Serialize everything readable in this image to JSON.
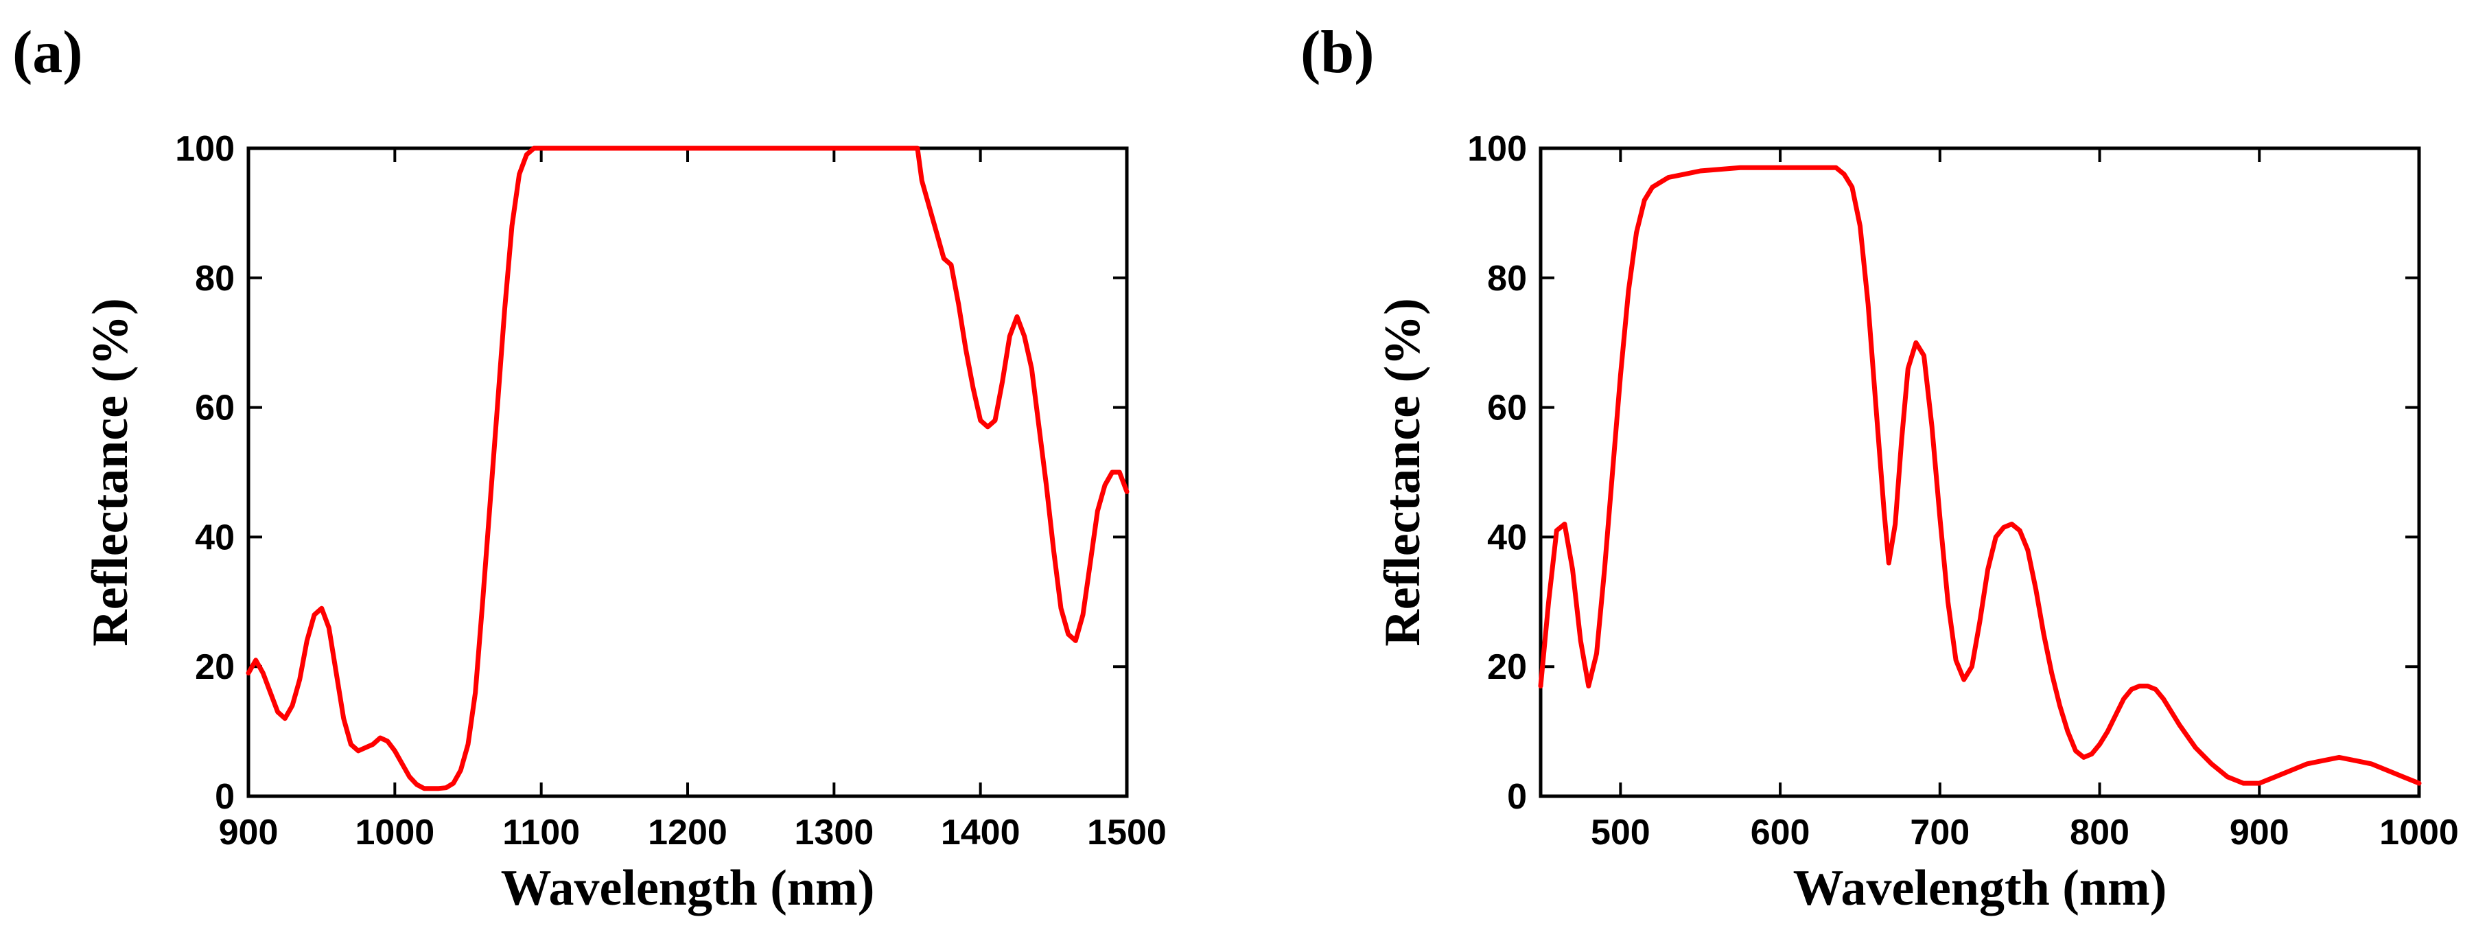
{
  "chart_data": [
    {
      "type": "line",
      "panel_label": "(a)",
      "xlabel": "Wavelength (nm)",
      "ylabel": "Reflectance (%)",
      "xlim": [
        900,
        1500
      ],
      "ylim": [
        0,
        100
      ],
      "xticks": [
        900,
        1000,
        1100,
        1200,
        1300,
        1400,
        1500
      ],
      "yticks": [
        0,
        20,
        40,
        60,
        80,
        100
      ],
      "grid": false,
      "series": [
        {
          "name": "reflectance",
          "color": "#ff0000",
          "x": [
            900,
            905,
            910,
            915,
            920,
            925,
            930,
            935,
            940,
            945,
            950,
            955,
            960,
            965,
            970,
            975,
            980,
            985,
            990,
            995,
            1000,
            1005,
            1010,
            1015,
            1020,
            1025,
            1030,
            1035,
            1040,
            1045,
            1050,
            1055,
            1060,
            1065,
            1070,
            1075,
            1080,
            1085,
            1090,
            1095,
            1100,
            1150,
            1200,
            1250,
            1300,
            1357,
            1360,
            1365,
            1370,
            1375,
            1380,
            1385,
            1390,
            1395,
            1400,
            1405,
            1410,
            1415,
            1420,
            1425,
            1430,
            1435,
            1440,
            1445,
            1450,
            1455,
            1460,
            1465,
            1470,
            1475,
            1480,
            1485,
            1490,
            1495,
            1500
          ],
          "y": [
            19,
            21,
            19,
            16,
            13,
            12,
            14,
            18,
            24,
            28,
            29,
            26,
            19,
            12,
            8,
            7,
            7.5,
            8,
            9,
            8.5,
            7,
            5,
            3,
            1.8,
            1.2,
            1.2,
            1.2,
            1.3,
            2,
            4,
            8,
            16,
            30,
            45,
            60,
            75,
            88,
            96,
            99,
            100,
            100,
            100,
            100,
            100,
            100,
            100,
            95,
            91,
            87,
            83,
            82,
            76,
            69,
            63,
            58,
            57,
            58,
            64,
            71,
            74,
            71,
            66,
            57,
            48,
            38,
            29,
            25,
            24,
            28,
            36,
            44,
            48,
            50,
            50,
            47
          ]
        }
      ]
    },
    {
      "type": "line",
      "panel_label": "(b)",
      "xlabel": "Wavelength (nm)",
      "ylabel": "Reflectance (%)",
      "xlim": [
        450,
        1000
      ],
      "ylim": [
        0,
        100
      ],
      "xticks": [
        500,
        600,
        700,
        800,
        900,
        1000
      ],
      "yticks": [
        0,
        20,
        40,
        60,
        80,
        100
      ],
      "grid": false,
      "series": [
        {
          "name": "reflectance",
          "color": "#ff0000",
          "x": [
            450,
            455,
            460,
            465,
            470,
            475,
            480,
            485,
            490,
            495,
            500,
            505,
            510,
            515,
            520,
            530,
            540,
            550,
            575,
            600,
            625,
            635,
            640,
            645,
            650,
            655,
            660,
            665,
            668,
            672,
            676,
            680,
            685,
            690,
            695,
            700,
            705,
            710,
            715,
            720,
            725,
            730,
            735,
            740,
            745,
            750,
            755,
            760,
            765,
            770,
            775,
            780,
            785,
            790,
            795,
            800,
            805,
            810,
            815,
            820,
            825,
            830,
            835,
            840,
            845,
            850,
            860,
            870,
            880,
            890,
            900,
            910,
            920,
            930,
            940,
            950,
            960,
            970,
            980,
            990,
            1000
          ],
          "y": [
            17,
            30,
            41,
            42,
            35,
            24,
            17,
            22,
            35,
            50,
            65,
            78,
            87,
            92,
            94,
            95.5,
            96,
            96.5,
            97,
            97,
            97,
            97,
            96,
            94,
            88,
            76,
            60,
            44,
            36,
            42,
            55,
            66,
            70,
            68,
            57,
            43,
            30,
            21,
            18,
            20,
            27,
            35,
            40,
            41.5,
            42,
            41,
            38,
            32,
            25,
            19,
            14,
            10,
            7,
            6,
            6.5,
            8,
            10,
            12.5,
            15,
            16.5,
            17,
            17,
            16.5,
            15,
            13,
            11,
            7.5,
            5,
            3,
            2,
            2,
            3,
            4,
            5,
            5.5,
            6,
            5.5,
            5,
            4,
            3,
            2
          ]
        }
      ]
    }
  ]
}
